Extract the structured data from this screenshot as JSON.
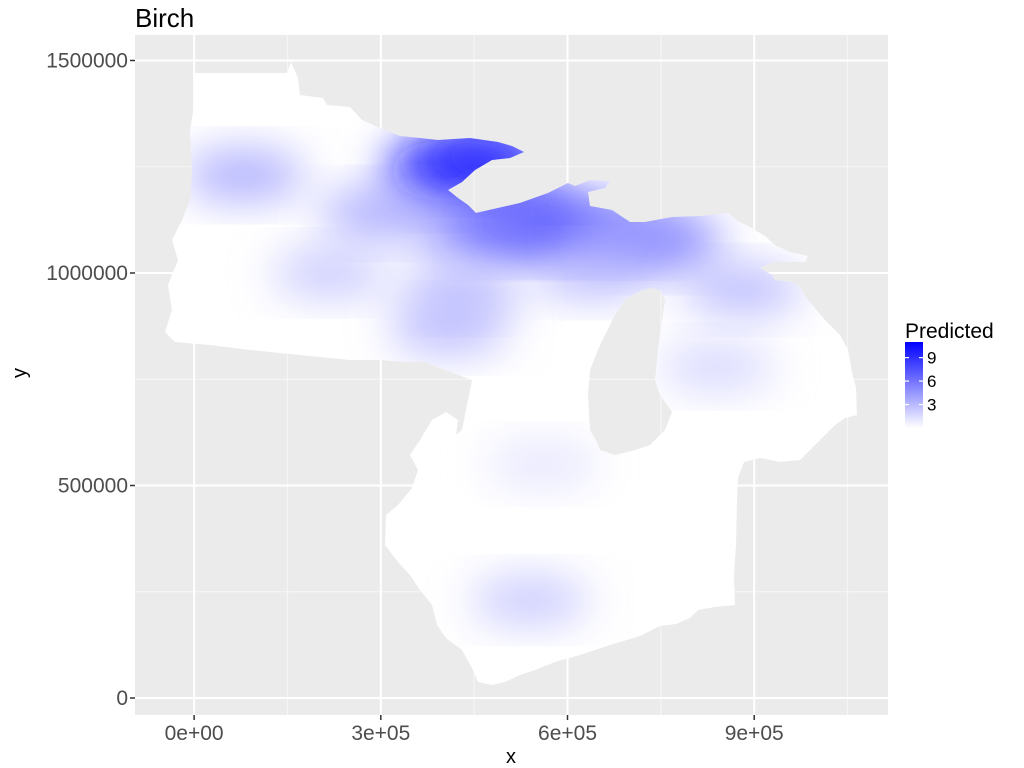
{
  "chart_data": {
    "type": "heatmap",
    "title": "Birch",
    "xlabel": "x",
    "ylabel": "y",
    "xlim": [
      -95000,
      1115000
    ],
    "ylim": [
      -40000,
      1560000
    ],
    "x_ticks": [
      0,
      300000,
      600000,
      900000
    ],
    "x_tick_labels": [
      "0e+00",
      "3e+05",
      "6e+05",
      "9e+05"
    ],
    "y_ticks": [
      0,
      500000,
      1000000,
      1500000
    ],
    "y_tick_labels": [
      "0",
      "500000",
      "1000000",
      "1500000"
    ],
    "grid": true,
    "legend": {
      "title": "Predicted",
      "position": "right",
      "range": [
        0,
        11
      ],
      "breaks": [
        3,
        6,
        9
      ],
      "break_labels": [
        "3",
        "6",
        "9"
      ],
      "low_color": "#ffffff",
      "high_color": "#0000ff"
    },
    "colors": {
      "panel_background": "#ebebeb",
      "grid_major": "#ffffff",
      "grid_minor": "#f5f5f5",
      "low": "#ffffff",
      "high": "#0000ff"
    },
    "hotspots": [
      {
        "x": 560000,
        "y": 1283000,
        "value": 11
      },
      {
        "x": 590000,
        "y": 1290000,
        "value": 11
      },
      {
        "x": 420000,
        "y": 1240000,
        "value": 7.5
      },
      {
        "x": 470000,
        "y": 1270000,
        "value": 6.5
      },
      {
        "x": 530000,
        "y": 1120000,
        "value": 6
      },
      {
        "x": 600000,
        "y": 1110000,
        "value": 5
      },
      {
        "x": 460000,
        "y": 1100000,
        "value": 4
      },
      {
        "x": 80000,
        "y": 1230000,
        "value": 3
      },
      {
        "x": 300000,
        "y": 1140000,
        "value": 3
      },
      {
        "x": 750000,
        "y": 1070000,
        "value": 4
      },
      {
        "x": 700000,
        "y": 1100000,
        "value": 3.5
      },
      {
        "x": 640000,
        "y": 1000000,
        "value": 2.5
      },
      {
        "x": 430000,
        "y": 960000,
        "value": 2.5
      },
      {
        "x": 220000,
        "y": 1000000,
        "value": 2
      },
      {
        "x": 880000,
        "y": 960000,
        "value": 2.5
      },
      {
        "x": 410000,
        "y": 870000,
        "value": 2.5
      },
      {
        "x": 840000,
        "y": 780000,
        "value": 1.5
      },
      {
        "x": 540000,
        "y": 230000,
        "value": 2
      },
      {
        "x": 560000,
        "y": 550000,
        "value": 1
      }
    ]
  }
}
